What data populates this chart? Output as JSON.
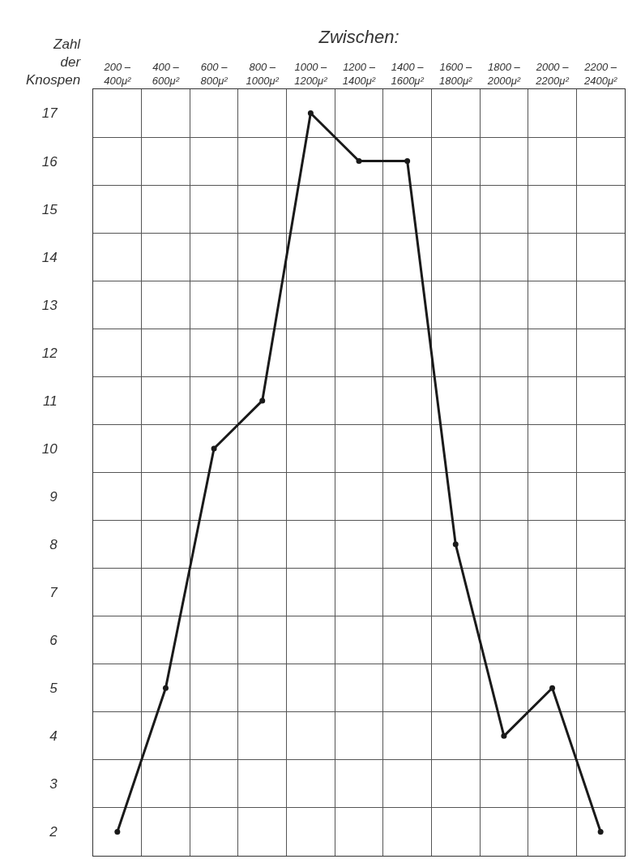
{
  "chart_data": {
    "type": "line",
    "xlabel": "Zwischen:",
    "ylabel": "Zahl der Knospen",
    "categories": [
      "200 –\n400μ²",
      "400 –\n600μ²",
      "600 –\n800μ²",
      "800 –\n1000μ²",
      "1000 –\n1200μ²",
      "1200 –\n1400μ²",
      "1400 –\n1600μ²",
      "1600 –\n1800μ²",
      "1800 –\n2000μ²",
      "2000 –\n2200μ²",
      "2200 –\n2400μ²"
    ],
    "series": [
      {
        "color": "#1a1a1a",
        "values": [
          2,
          5,
          10,
          11,
          17,
          16,
          16,
          8,
          4,
          5,
          2
        ]
      }
    ],
    "ylim": [
      1.5,
      17.5
    ],
    "yticks": [
      2,
      3,
      4,
      5,
      6,
      7,
      8,
      9,
      10,
      11,
      12,
      13,
      14,
      15,
      16,
      17
    ],
    "grid": true,
    "marker": "circle",
    "line_style": "solid"
  }
}
